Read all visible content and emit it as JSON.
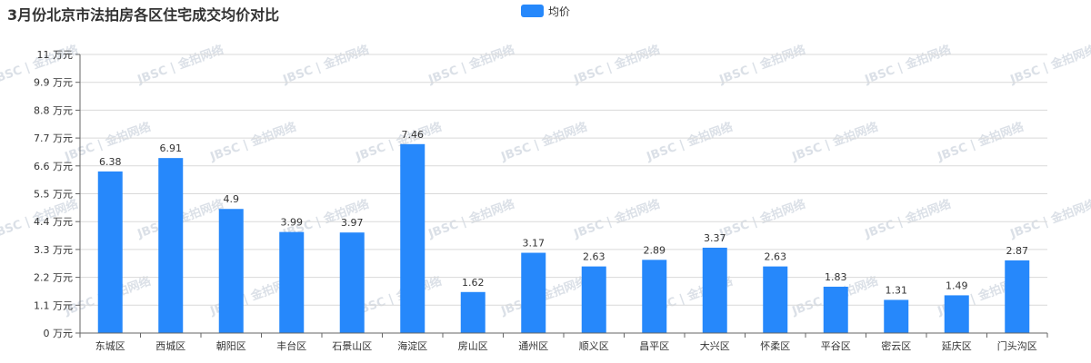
{
  "colors": {
    "bar": "#2688fb",
    "grid": "#d9d9d9",
    "axis": "#666666",
    "text": "#333333"
  },
  "watermark": "JBSC | 金拍网络",
  "chart_data": {
    "type": "bar",
    "title": "3月份北京市法拍房各区住宅成交均价对比",
    "legend": {
      "label": "均价",
      "placement": "top-center"
    },
    "y_unit": "万元",
    "ylim": [
      0,
      11
    ],
    "yticks": [
      0,
      1.1,
      2.2,
      3.3,
      4.4,
      5.5,
      6.6,
      7.7,
      8.8,
      9.9,
      11
    ],
    "grid": true,
    "categories": [
      "东城区",
      "西城区",
      "朝阳区",
      "丰台区",
      "石景山区",
      "海淀区",
      "房山区",
      "通州区",
      "顺义区",
      "昌平区",
      "大兴区",
      "怀柔区",
      "平谷区",
      "密云区",
      "延庆区",
      "门头沟区"
    ],
    "series": [
      {
        "name": "均价",
        "values": [
          6.38,
          6.91,
          4.9,
          3.99,
          3.97,
          7.46,
          1.62,
          3.17,
          2.63,
          2.89,
          3.37,
          2.63,
          1.83,
          1.31,
          1.49,
          2.87
        ]
      }
    ]
  }
}
